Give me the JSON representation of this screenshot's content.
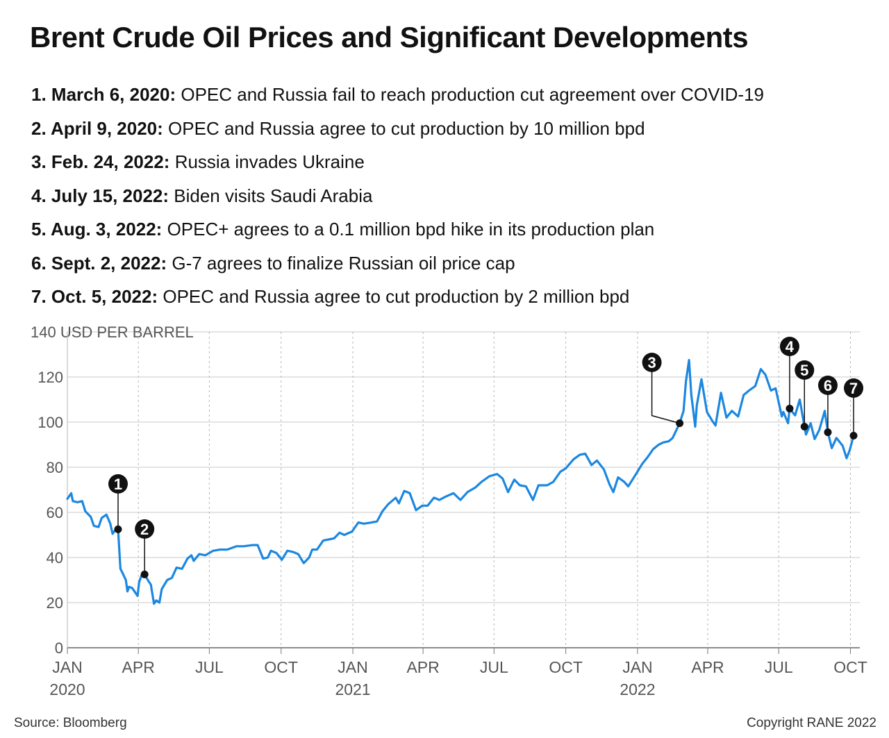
{
  "title": "Brent Crude Oil Prices and Significant Developments",
  "events": [
    {
      "num": "1",
      "date": "1. March 6, 2020:",
      "text": "OPEC and Russia fail to reach production cut agreement over COVID-19",
      "x": "2020-03-06",
      "y": 52.5
    },
    {
      "num": "2",
      "date": "2. April 9, 2020:",
      "text": "OPEC and Russia agree to cut production by 10 million bpd",
      "x": "2020-04-09",
      "y": 32.5
    },
    {
      "num": "3",
      "date": "3. Feb. 24, 2022:",
      "text": "Russia invades Ukraine",
      "x": "2022-02-24",
      "y": 99.5
    },
    {
      "num": "4",
      "date": "4. July 15, 2022:",
      "text": "Biden visits Saudi Arabia",
      "x": "2022-07-15",
      "y": 106
    },
    {
      "num": "5",
      "date": "5. Aug. 3, 2022:",
      "text": "OPEC+ agrees to a 0.1 million bpd hike in its production plan",
      "x": "2022-08-03",
      "y": 98
    },
    {
      "num": "6",
      "date": "6. Sept. 2, 2022:",
      "text": "G-7 agrees to finalize Russian oil price cap",
      "x": "2022-09-02",
      "y": 95.5
    },
    {
      "num": "7",
      "date": "7. Oct. 5, 2022:",
      "text": "OPEC and Russia agree to cut production by 2 million bpd",
      "x": "2022-10-05",
      "y": 94
    }
  ],
  "chart_data": {
    "type": "line",
    "ylabel": "USD PER BARREL",
    "ylim": [
      0,
      140
    ],
    "yticks": [
      0,
      20,
      40,
      60,
      80,
      100,
      120,
      140
    ],
    "xlim": [
      "2020-01-01",
      "2022-10-13"
    ],
    "xticks": [
      {
        "date": "2020-01-01",
        "label": "JAN",
        "year": "2020"
      },
      {
        "date": "2020-04-01",
        "label": "APR",
        "year": ""
      },
      {
        "date": "2020-07-01",
        "label": "JUL",
        "year": ""
      },
      {
        "date": "2020-10-01",
        "label": "OCT",
        "year": ""
      },
      {
        "date": "2021-01-01",
        "label": "JAN",
        "year": "2021"
      },
      {
        "date": "2021-04-01",
        "label": "APR",
        "year": ""
      },
      {
        "date": "2021-07-01",
        "label": "JUL",
        "year": ""
      },
      {
        "date": "2021-10-01",
        "label": "OCT",
        "year": ""
      },
      {
        "date": "2022-01-01",
        "label": "JAN",
        "year": "2022"
      },
      {
        "date": "2022-04-01",
        "label": "APR",
        "year": ""
      },
      {
        "date": "2022-07-01",
        "label": "JUL",
        "year": ""
      },
      {
        "date": "2022-10-01",
        "label": "OCT",
        "year": ""
      }
    ],
    "grid": true,
    "series": [
      {
        "color": "#1b87e0",
        "points": [
          [
            "2020-01-01",
            66
          ],
          [
            "2020-01-06",
            68.5
          ],
          [
            "2020-01-08",
            65
          ],
          [
            "2020-01-14",
            64.5
          ],
          [
            "2020-01-20",
            65
          ],
          [
            "2020-01-24",
            60.5
          ],
          [
            "2020-01-31",
            58
          ],
          [
            "2020-02-04",
            54
          ],
          [
            "2020-02-10",
            53.5
          ],
          [
            "2020-02-14",
            57.5
          ],
          [
            "2020-02-20",
            59
          ],
          [
            "2020-02-25",
            55
          ],
          [
            "2020-02-28",
            50.5
          ],
          [
            "2020-03-04",
            53
          ],
          [
            "2020-03-06",
            52.5
          ],
          [
            "2020-03-09",
            35
          ],
          [
            "2020-03-12",
            33
          ],
          [
            "2020-03-16",
            30
          ],
          [
            "2020-03-18",
            25
          ],
          [
            "2020-03-20",
            27
          ],
          [
            "2020-03-24",
            26.5
          ],
          [
            "2020-03-27",
            25
          ],
          [
            "2020-03-31",
            23
          ],
          [
            "2020-04-02",
            29
          ],
          [
            "2020-04-06",
            33
          ],
          [
            "2020-04-09",
            32.5
          ],
          [
            "2020-04-14",
            29.5
          ],
          [
            "2020-04-17",
            28
          ],
          [
            "2020-04-21",
            19.5
          ],
          [
            "2020-04-24",
            21
          ],
          [
            "2020-04-28",
            20
          ],
          [
            "2020-05-01",
            26
          ],
          [
            "2020-05-08",
            30
          ],
          [
            "2020-05-14",
            31
          ],
          [
            "2020-05-20",
            35.5
          ],
          [
            "2020-05-27",
            35
          ],
          [
            "2020-06-03",
            39.5
          ],
          [
            "2020-06-08",
            41
          ],
          [
            "2020-06-11",
            38.5
          ],
          [
            "2020-06-18",
            41.5
          ],
          [
            "2020-06-26",
            41
          ],
          [
            "2020-07-06",
            43
          ],
          [
            "2020-07-15",
            43.5
          ],
          [
            "2020-07-24",
            43.5
          ],
          [
            "2020-08-05",
            45
          ],
          [
            "2020-08-14",
            45
          ],
          [
            "2020-08-26",
            45.5
          ],
          [
            "2020-09-01",
            45.5
          ],
          [
            "2020-09-08",
            39.5
          ],
          [
            "2020-09-14",
            40
          ],
          [
            "2020-09-18",
            43
          ],
          [
            "2020-09-25",
            42
          ],
          [
            "2020-10-02",
            39
          ],
          [
            "2020-10-09",
            43
          ],
          [
            "2020-10-16",
            42.5
          ],
          [
            "2020-10-23",
            41.5
          ],
          [
            "2020-10-30",
            37.5
          ],
          [
            "2020-11-06",
            40
          ],
          [
            "2020-11-10",
            43.5
          ],
          [
            "2020-11-16",
            43.5
          ],
          [
            "2020-11-24",
            47.5
          ],
          [
            "2020-12-01",
            48
          ],
          [
            "2020-12-08",
            48.5
          ],
          [
            "2020-12-15",
            51
          ],
          [
            "2020-12-21",
            50
          ],
          [
            "2020-12-31",
            51.5
          ],
          [
            "2021-01-08",
            55.5
          ],
          [
            "2021-01-15",
            55
          ],
          [
            "2021-01-25",
            55.5
          ],
          [
            "2021-02-01",
            56
          ],
          [
            "2021-02-08",
            60.5
          ],
          [
            "2021-02-15",
            63.5
          ],
          [
            "2021-02-25",
            66.5
          ],
          [
            "2021-03-01",
            64
          ],
          [
            "2021-03-08",
            69.5
          ],
          [
            "2021-03-15",
            68.5
          ],
          [
            "2021-03-23",
            61
          ],
          [
            "2021-03-31",
            63
          ],
          [
            "2021-04-07",
            63
          ],
          [
            "2021-04-15",
            66.5
          ],
          [
            "2021-04-22",
            65.5
          ],
          [
            "2021-04-30",
            67
          ],
          [
            "2021-05-10",
            68.5
          ],
          [
            "2021-05-19",
            65.5
          ],
          [
            "2021-05-28",
            69
          ],
          [
            "2021-06-07",
            71
          ],
          [
            "2021-06-15",
            73.5
          ],
          [
            "2021-06-25",
            76
          ],
          [
            "2021-07-05",
            77
          ],
          [
            "2021-07-12",
            75
          ],
          [
            "2021-07-19",
            69
          ],
          [
            "2021-07-27",
            74.5
          ],
          [
            "2021-08-03",
            72
          ],
          [
            "2021-08-11",
            71.5
          ],
          [
            "2021-08-20",
            65.5
          ],
          [
            "2021-08-27",
            72
          ],
          [
            "2021-09-07",
            72
          ],
          [
            "2021-09-15",
            73.5
          ],
          [
            "2021-09-24",
            78
          ],
          [
            "2021-10-01",
            79.5
          ],
          [
            "2021-10-11",
            83.5
          ],
          [
            "2021-10-19",
            85.5
          ],
          [
            "2021-10-26",
            86
          ],
          [
            "2021-11-03",
            81
          ],
          [
            "2021-11-10",
            83
          ],
          [
            "2021-11-19",
            79
          ],
          [
            "2021-11-26",
            72.5
          ],
          [
            "2021-12-01",
            69
          ],
          [
            "2021-12-07",
            75.5
          ],
          [
            "2021-12-15",
            73.5
          ],
          [
            "2021-12-20",
            71.5
          ],
          [
            "2021-12-31",
            77.5
          ],
          [
            "2022-01-07",
            81.5
          ],
          [
            "2022-01-14",
            84.5
          ],
          [
            "2022-01-21",
            88
          ],
          [
            "2022-01-28",
            90
          ],
          [
            "2022-02-03",
            91
          ],
          [
            "2022-02-10",
            91.5
          ],
          [
            "2022-02-15",
            93
          ],
          [
            "2022-02-24",
            99.5
          ],
          [
            "2022-03-01",
            105
          ],
          [
            "2022-03-04",
            118
          ],
          [
            "2022-03-08",
            127.5
          ],
          [
            "2022-03-11",
            112
          ],
          [
            "2022-03-16",
            98
          ],
          [
            "2022-03-18",
            107.5
          ],
          [
            "2022-03-24",
            119
          ],
          [
            "2022-03-31",
            104.5
          ],
          [
            "2022-04-07",
            100.5
          ],
          [
            "2022-04-11",
            98.5
          ],
          [
            "2022-04-18",
            113
          ],
          [
            "2022-04-25",
            102
          ],
          [
            "2022-05-02",
            105
          ],
          [
            "2022-05-10",
            102.5
          ],
          [
            "2022-05-17",
            112
          ],
          [
            "2022-05-24",
            114
          ],
          [
            "2022-06-01",
            116
          ],
          [
            "2022-06-08",
            123.5
          ],
          [
            "2022-06-14",
            121
          ],
          [
            "2022-06-21",
            114
          ],
          [
            "2022-06-27",
            115
          ],
          [
            "2022-07-05",
            102.5
          ],
          [
            "2022-07-07",
            104.5
          ],
          [
            "2022-07-13",
            99.5
          ],
          [
            "2022-07-15",
            106
          ],
          [
            "2022-07-22",
            103
          ],
          [
            "2022-07-28",
            110
          ],
          [
            "2022-08-03",
            98
          ],
          [
            "2022-08-05",
            94.5
          ],
          [
            "2022-08-11",
            99.5
          ],
          [
            "2022-08-16",
            92.5
          ],
          [
            "2022-08-22",
            96.5
          ],
          [
            "2022-08-29",
            105
          ],
          [
            "2022-09-02",
            95.5
          ],
          [
            "2022-09-07",
            88.5
          ],
          [
            "2022-09-13",
            93
          ],
          [
            "2022-09-21",
            89.5
          ],
          [
            "2022-09-26",
            84
          ],
          [
            "2022-09-30",
            87.5
          ],
          [
            "2022-10-05",
            94
          ]
        ]
      }
    ]
  },
  "source": "Source: Bloomberg",
  "copyright": "Copyright RANE 2022"
}
